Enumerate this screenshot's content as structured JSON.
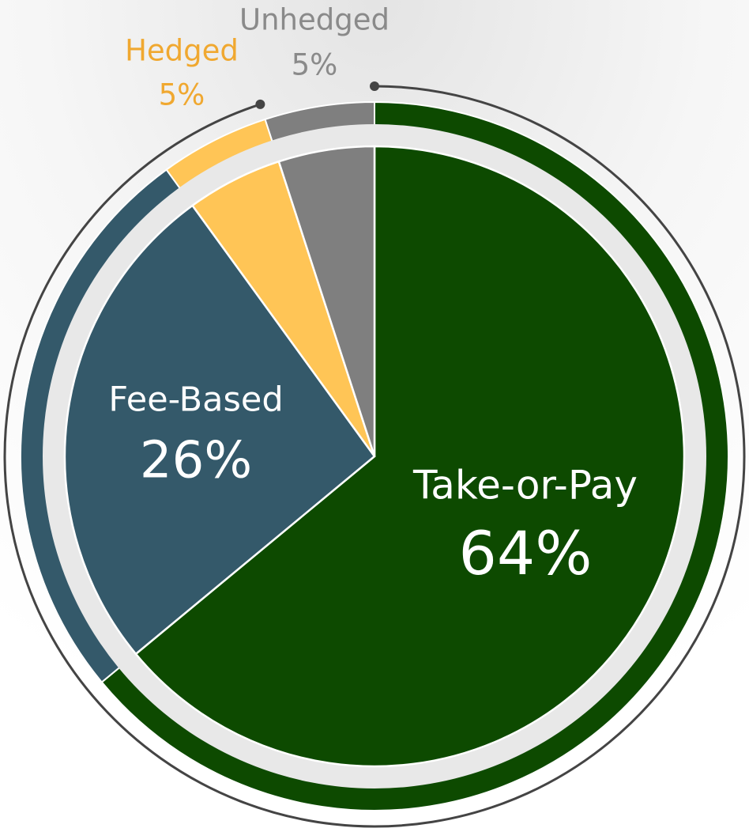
{
  "chart_data": {
    "type": "pie",
    "categories": [
      "Take-or-Pay",
      "Fee-Based",
      "Hedged",
      "Unhedged"
    ],
    "values": [
      64,
      26,
      5,
      5
    ],
    "value_labels": [
      "64%",
      "26%",
      "5%",
      "5%"
    ],
    "colors": [
      "#0d4a00",
      "#34596a",
      "#ffc556",
      "#7f7f7f"
    ]
  }
}
